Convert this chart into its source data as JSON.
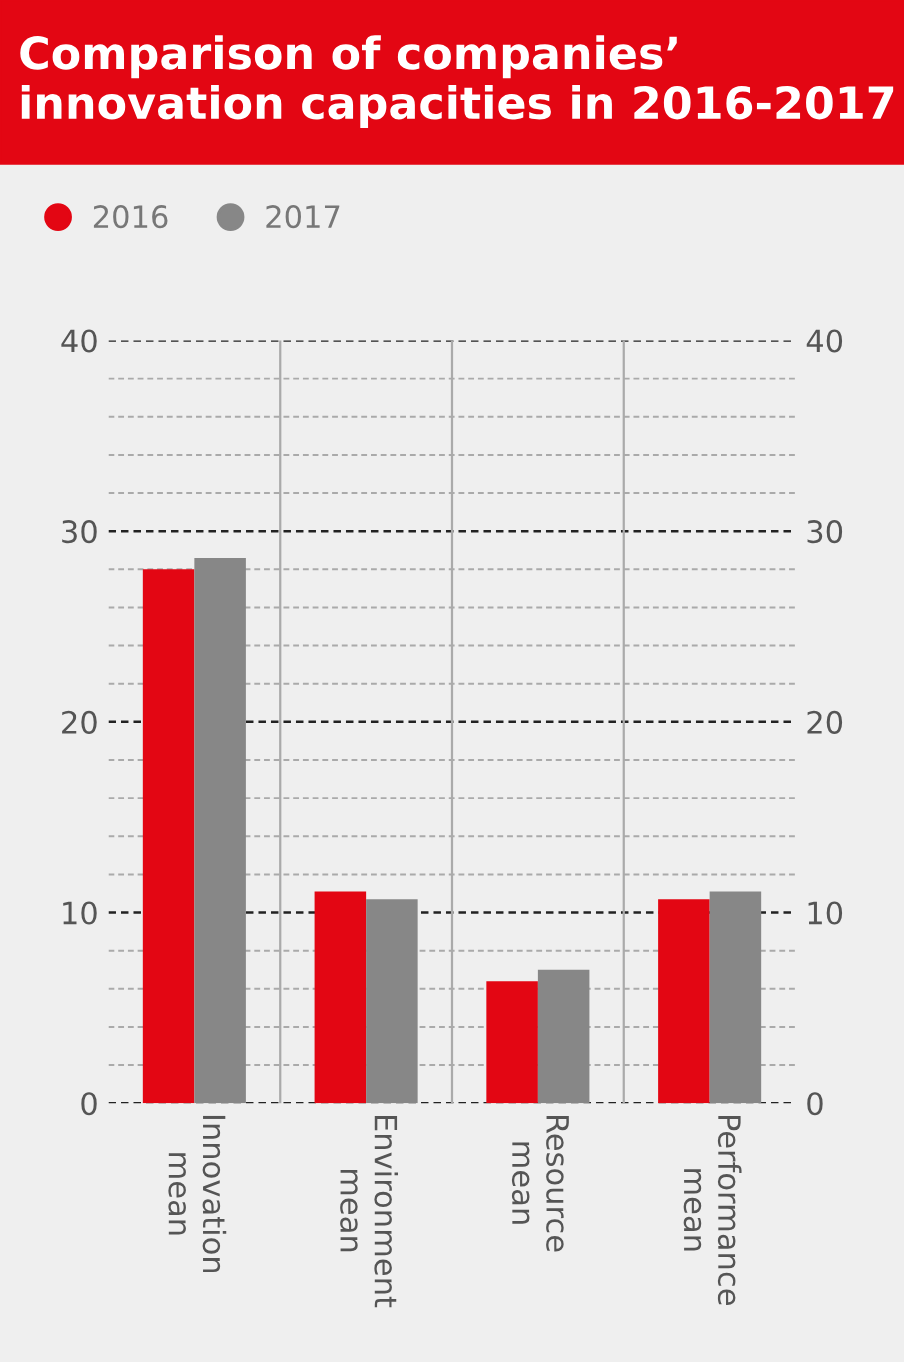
{
  "chart_data": {
    "type": "bar",
    "title": "Comparison of companies’ innovation capacities in 2016-2017",
    "categories": [
      "Innovation\nmean",
      "Environment\nmean",
      "Resource\nmean",
      "Performance\nmean"
    ],
    "series": [
      {
        "name": "2016",
        "color": "#e30613",
        "values": [
          28.0,
          11.1,
          6.4,
          10.7
        ]
      },
      {
        "name": "2017",
        "color": "#878787",
        "values": [
          28.6,
          10.7,
          7.0,
          11.1
        ]
      }
    ],
    "ylim": [
      0,
      40
    ],
    "yticks": [
      0,
      10,
      20,
      30,
      40
    ],
    "y2lim": [
      0,
      40
    ],
    "y2ticks": [
      0,
      10,
      20,
      30,
      40
    ],
    "grid": "y",
    "legend": "top left"
  }
}
